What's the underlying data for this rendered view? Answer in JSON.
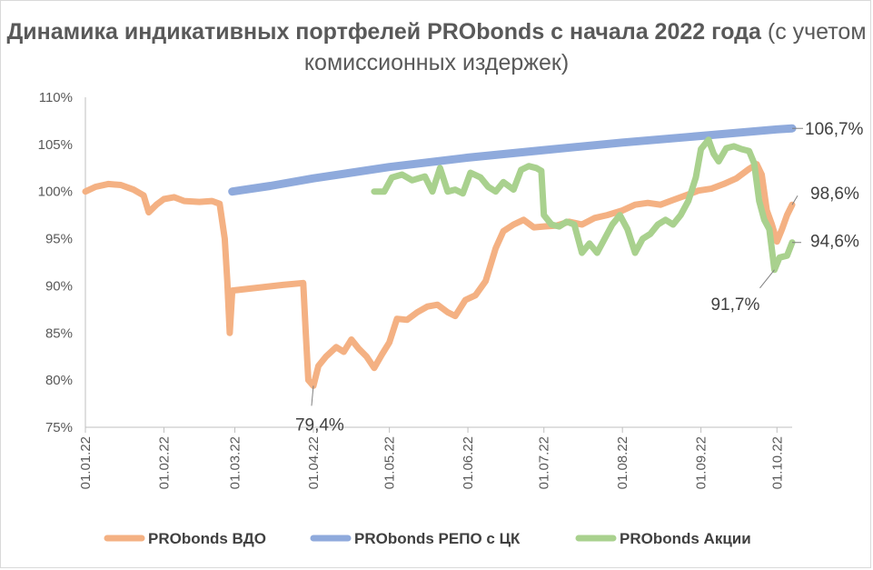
{
  "chart_data": {
    "type": "line",
    "title_bold": "Динамика индикативных портфелей PRObonds с начала 2022 года",
    "title_regular": "(с учетом комиссионных издержек)",
    "ylim": [
      75,
      110
    ],
    "y_ticks": [
      "75%",
      "80%",
      "85%",
      "90%",
      "95%",
      "100%",
      "105%",
      "110%"
    ],
    "x_ticks": [
      "01.01.22",
      "01.02.22",
      "01.03.22",
      "01.04.22",
      "01.05.22",
      "01.06.22",
      "01.07.22",
      "01.08.22",
      "01.09.22",
      "01.10.22"
    ],
    "series": [
      {
        "name": "PRObonds ВДО",
        "color": "#f4b183",
        "points": [
          [
            "01.01.22",
            100.0
          ],
          [
            "05.01.22",
            100.5
          ],
          [
            "10.01.22",
            100.8
          ],
          [
            "15.01.22",
            100.7
          ],
          [
            "20.01.22",
            100.2
          ],
          [
            "24.01.22",
            99.6
          ],
          [
            "26.01.22",
            97.8
          ],
          [
            "29.01.22",
            98.6
          ],
          [
            "01.02.22",
            99.2
          ],
          [
            "05.02.22",
            99.4
          ],
          [
            "09.02.22",
            99.0
          ],
          [
            "15.02.22",
            98.9
          ],
          [
            "20.02.22",
            99.0
          ],
          [
            "23.02.22",
            98.7
          ],
          [
            "25.02.22",
            95.0
          ],
          [
            "26.02.22",
            90.5
          ],
          [
            "27.02.22",
            85.0
          ],
          [
            "28.02.22",
            89.5
          ],
          [
            "10.03.22",
            89.8
          ],
          [
            "20.03.22",
            90.1
          ],
          [
            "28.03.22",
            90.3
          ],
          [
            "29.03.22",
            85.0
          ],
          [
            "30.03.22",
            80.0
          ],
          [
            "01.04.22",
            79.4
          ],
          [
            "03.04.22",
            81.5
          ],
          [
            "06.04.22",
            82.5
          ],
          [
            "10.04.22",
            83.5
          ],
          [
            "13.04.22",
            83.0
          ],
          [
            "16.04.22",
            84.3
          ],
          [
            "19.04.22",
            83.3
          ],
          [
            "22.04.22",
            82.5
          ],
          [
            "25.04.22",
            81.3
          ],
          [
            "28.04.22",
            82.7
          ],
          [
            "01.05.22",
            84.0
          ],
          [
            "04.05.22",
            86.5
          ],
          [
            "08.05.22",
            86.4
          ],
          [
            "12.05.22",
            87.2
          ],
          [
            "16.05.22",
            87.8
          ],
          [
            "20.05.22",
            88.0
          ],
          [
            "24.05.22",
            87.2
          ],
          [
            "27.05.22",
            86.8
          ],
          [
            "31.05.22",
            88.5
          ],
          [
            "04.06.22",
            89.0
          ],
          [
            "08.06.22",
            90.5
          ],
          [
            "12.06.22",
            94.0
          ],
          [
            "15.06.22",
            95.8
          ],
          [
            "19.06.22",
            96.5
          ],
          [
            "23.06.22",
            97.0
          ],
          [
            "27.06.22",
            96.2
          ],
          [
            "01.07.22",
            96.3
          ],
          [
            "06.07.22",
            96.4
          ],
          [
            "11.07.22",
            96.8
          ],
          [
            "16.07.22",
            96.5
          ],
          [
            "21.07.22",
            97.2
          ],
          [
            "26.07.22",
            97.5
          ],
          [
            "01.08.22",
            98.0
          ],
          [
            "06.08.22",
            98.6
          ],
          [
            "11.08.22",
            98.8
          ],
          [
            "16.08.22",
            98.6
          ],
          [
            "21.08.22",
            99.1
          ],
          [
            "26.08.22",
            99.6
          ],
          [
            "31.08.22",
            100.1
          ],
          [
            "05.09.22",
            100.3
          ],
          [
            "10.09.22",
            100.8
          ],
          [
            "15.09.22",
            101.4
          ],
          [
            "20.09.22",
            102.4
          ],
          [
            "23.09.22",
            102.9
          ],
          [
            "25.09.22",
            101.8
          ],
          [
            "27.09.22",
            98.0
          ],
          [
            "29.09.22",
            96.5
          ],
          [
            "01.10.22",
            94.7
          ],
          [
            "03.10.22",
            96.0
          ],
          [
            "05.10.22",
            97.5
          ],
          [
            "07.10.22",
            98.6
          ]
        ]
      },
      {
        "name": "PRObonds РЕПО с ЦК",
        "color": "#8faadc",
        "points": [
          [
            "28.02.22",
            100.0
          ],
          [
            "15.03.22",
            100.6
          ],
          [
            "01.04.22",
            101.4
          ],
          [
            "01.05.22",
            102.6
          ],
          [
            "01.06.22",
            103.6
          ],
          [
            "01.07.22",
            104.4
          ],
          [
            "01.08.22",
            105.2
          ],
          [
            "01.09.22",
            105.9
          ],
          [
            "01.10.22",
            106.6
          ],
          [
            "07.10.22",
            106.7
          ]
        ]
      },
      {
        "name": "PRObonds Акции",
        "color": "#a9d18e",
        "points": [
          [
            "25.04.22",
            100.0
          ],
          [
            "29.04.22",
            100.0
          ],
          [
            "02.05.22",
            101.5
          ],
          [
            "06.05.22",
            101.8
          ],
          [
            "10.05.22",
            101.2
          ],
          [
            "15.05.22",
            101.6
          ],
          [
            "18.05.22",
            100.0
          ],
          [
            "21.05.22",
            102.5
          ],
          [
            "24.05.22",
            100.0
          ],
          [
            "27.05.22",
            100.2
          ],
          [
            "30.05.22",
            99.8
          ],
          [
            "02.06.22",
            102.0
          ],
          [
            "06.06.22",
            101.5
          ],
          [
            "09.06.22",
            100.5
          ],
          [
            "12.06.22",
            100.0
          ],
          [
            "15.06.22",
            101.0
          ],
          [
            "19.06.22",
            100.2
          ],
          [
            "22.06.22",
            102.3
          ],
          [
            "25.06.22",
            102.7
          ],
          [
            "28.06.22",
            102.5
          ],
          [
            "30.06.22",
            102.2
          ],
          [
            "01.07.22",
            97.5
          ],
          [
            "04.07.22",
            96.5
          ],
          [
            "07.07.22",
            96.3
          ],
          [
            "10.07.22",
            96.8
          ],
          [
            "13.07.22",
            96.5
          ],
          [
            "16.07.22",
            93.5
          ],
          [
            "19.07.22",
            94.5
          ],
          [
            "22.07.22",
            93.5
          ],
          [
            "25.07.22",
            95.0
          ],
          [
            "28.07.22",
            96.5
          ],
          [
            "31.07.22",
            97.5
          ],
          [
            "03.08.22",
            96.0
          ],
          [
            "06.08.22",
            93.5
          ],
          [
            "09.08.22",
            95.0
          ],
          [
            "12.08.22",
            95.5
          ],
          [
            "15.08.22",
            96.5
          ],
          [
            "18.08.22",
            97.0
          ],
          [
            "21.08.22",
            96.5
          ],
          [
            "24.08.22",
            97.5
          ],
          [
            "27.08.22",
            99.0
          ],
          [
            "30.08.22",
            101.5
          ],
          [
            "01.09.22",
            104.5
          ],
          [
            "04.09.22",
            105.5
          ],
          [
            "06.09.22",
            104.0
          ],
          [
            "08.09.22",
            103.2
          ],
          [
            "11.09.22",
            104.6
          ],
          [
            "14.09.22",
            104.8
          ],
          [
            "17.09.22",
            104.5
          ],
          [
            "20.09.22",
            104.3
          ],
          [
            "22.09.22",
            103.0
          ],
          [
            "24.09.22",
            99.0
          ],
          [
            "26.09.22",
            97.0
          ],
          [
            "28.09.22",
            96.0
          ],
          [
            "30.09.22",
            91.7
          ],
          [
            "02.10.22",
            93.0
          ],
          [
            "05.10.22",
            93.2
          ],
          [
            "07.10.22",
            94.6
          ]
        ]
      }
    ],
    "annotations": [
      {
        "text": "106,7%",
        "series": 1,
        "date": "07.10.22",
        "value": 106.7
      },
      {
        "text": "98,6%",
        "series": 0,
        "date": "07.10.22",
        "value": 98.6
      },
      {
        "text": "94,6%",
        "series": 2,
        "date": "07.10.22",
        "value": 94.6
      },
      {
        "text": "91,7%",
        "series": 2,
        "date": "30.09.22",
        "value": 91.7
      },
      {
        "text": "79,4%",
        "series": 0,
        "date": "01.04.22",
        "value": 79.4
      }
    ],
    "legend_position": "bottom",
    "grid": false
  }
}
